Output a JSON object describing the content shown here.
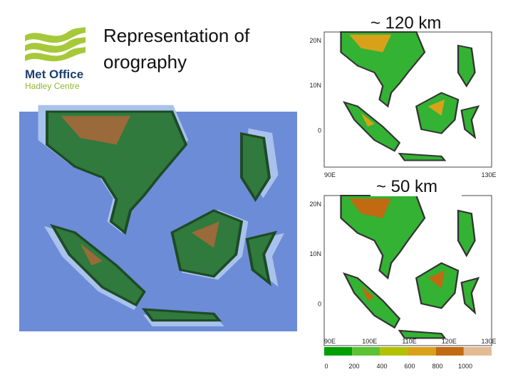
{
  "logo": {
    "line1": "Met Office",
    "line2": "Hadley Centre"
  },
  "title": "Representation of orography",
  "maps": [
    {
      "label": "~ 120 km",
      "lat_labels": [
        "20N",
        "10N",
        "0"
      ],
      "lon_labels": [
        "90E",
        "130E"
      ]
    },
    {
      "label": "~ 50 km",
      "lat_labels": [
        "20N",
        "10N",
        "0"
      ],
      "lon_labels": [
        "90E",
        "100E",
        "110E",
        "120E",
        "130E"
      ]
    }
  ],
  "legend": {
    "colors": [
      "#00a000",
      "#5cc232",
      "#b3c200",
      "#d9a11a",
      "#c06a12",
      "#e2bb92"
    ],
    "labels": [
      "0",
      "200",
      "400",
      "600",
      "800",
      "1000"
    ]
  }
}
